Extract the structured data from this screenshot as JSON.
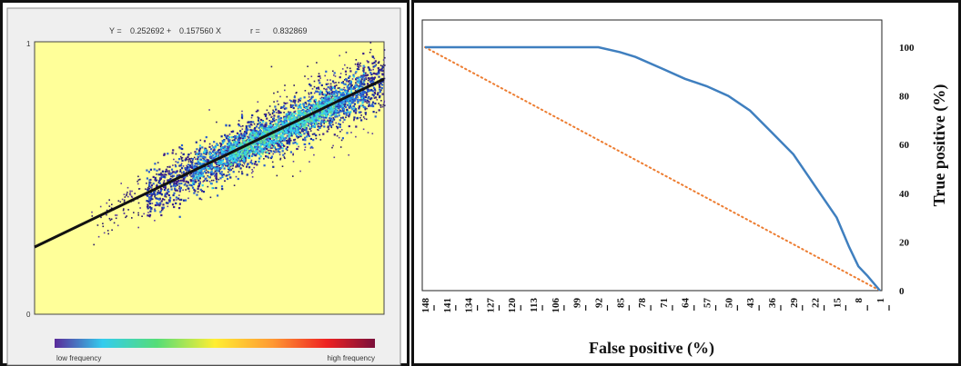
{
  "density_plot": {
    "equation": {
      "y_label": "Y =",
      "intercept": "0.252692",
      "plus": "+",
      "slope": "0.157560",
      "x_symbol": "X",
      "r_label": "r =",
      "r_value": "0.832869"
    },
    "y_ticks": [
      "1",
      "0"
    ],
    "colorbar": {
      "low_label": "low frequency",
      "high_label": "high frequency"
    },
    "colors": {
      "background": "#ffff99",
      "colorbar_stops": [
        "#5a2a9a",
        "#33ccee",
        "#55dd77",
        "#ffee33",
        "#ff9933",
        "#ee2222",
        "#7a0f3a"
      ]
    },
    "chart_data": {
      "type": "scatter",
      "xlim": [
        0,
        1
      ],
      "ylim": [
        0,
        1
      ],
      "regression": {
        "intercept": 0.252692,
        "slope": 0.15756,
        "r": 0.832869
      }
    }
  },
  "roc_plot": {
    "xlabel": "False positive (%)",
    "ylabel": "True positive (%)",
    "colors": {
      "curve": "#3f7fbf",
      "diagonal": "#ed7d31"
    },
    "chart_data": {
      "type": "line",
      "x_categories": [
        "148",
        "141",
        "134",
        "127",
        "120",
        "113",
        "106",
        "99",
        "92",
        "85",
        "78",
        "71",
        "64",
        "57",
        "50",
        "43",
        "36",
        "29",
        "22",
        "15",
        "8",
        "1"
      ],
      "y_ticks": [
        "0",
        "20",
        "40",
        "60",
        "80",
        "100"
      ],
      "ylim": [
        0,
        100
      ],
      "series": [
        {
          "style": "solid",
          "points": [
            [
              148,
              100
            ],
            [
              92,
              100
            ],
            [
              85,
              98
            ],
            [
              80,
              96
            ],
            [
              71,
              91
            ],
            [
              64,
              87
            ],
            [
              57,
              84
            ],
            [
              50,
              80
            ],
            [
              43,
              74
            ],
            [
              36,
              65
            ],
            [
              29,
              56
            ],
            [
              22,
              43
            ],
            [
              15,
              30
            ],
            [
              11,
              18
            ],
            [
              8,
              10
            ],
            [
              5,
              6
            ],
            [
              3,
              3
            ],
            [
              1,
              0
            ]
          ]
        },
        {
          "style": "dotted",
          "points": [
            [
              148,
              100
            ],
            [
              1,
              0
            ]
          ]
        }
      ]
    }
  }
}
